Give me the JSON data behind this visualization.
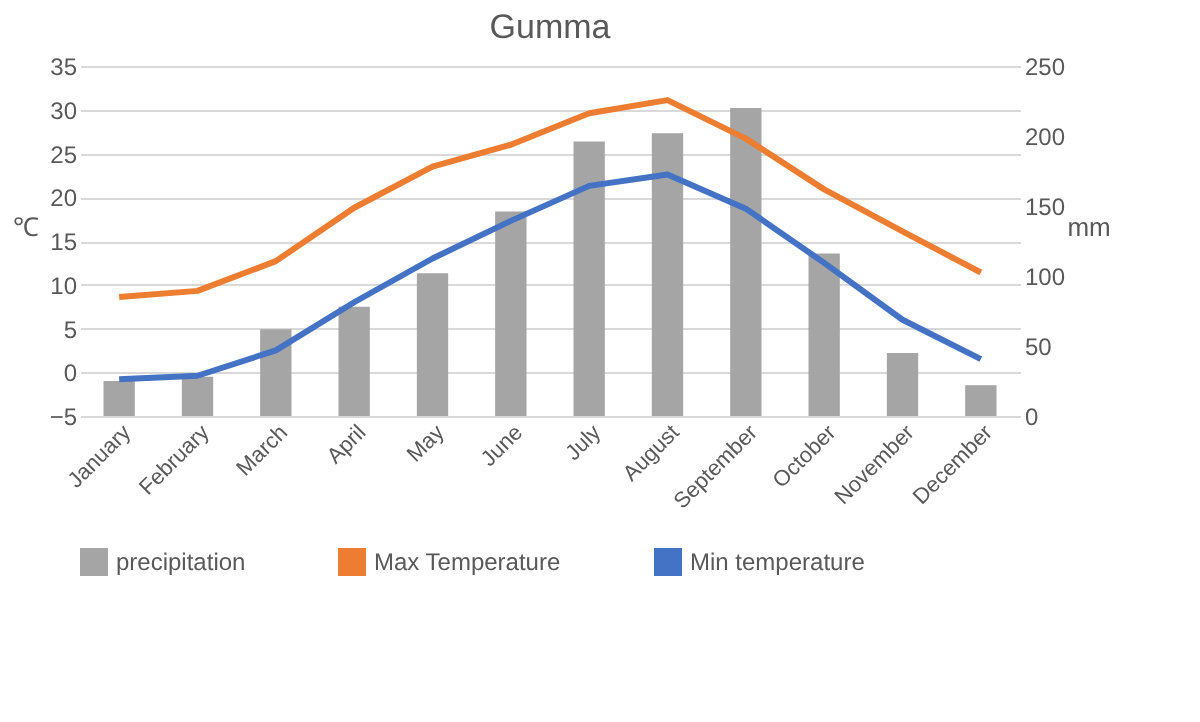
{
  "chart_data": {
    "type": "bar",
    "title": "Gumma",
    "ylabel": "℃",
    "y2label": "mm",
    "categories": [
      "January",
      "February",
      "March",
      "April",
      "May",
      "June",
      "July",
      "August",
      "September",
      "October",
      "November",
      "December"
    ],
    "series": [
      {
        "name": "precipitation",
        "axis": "y2",
        "color": "#a5a5a5",
        "values": [
          25,
          28,
          62,
          78,
          102,
          146,
          196,
          202,
          220,
          116,
          45,
          22
        ]
      },
      {
        "name": "Max Temperature",
        "type": "line",
        "color": "#ed7d31",
        "values": [
          8.6,
          9.3,
          12.7,
          18.8,
          23.5,
          26,
          29.6,
          31.1,
          26.7,
          20.9,
          16.1,
          11.4
        ]
      },
      {
        "name": "Min temperature",
        "type": "line",
        "color": "#4472c4",
        "values": [
          -0.8,
          -0.4,
          2.5,
          8,
          13,
          17.3,
          21.3,
          22.6,
          18.7,
          12.5,
          6,
          1.5
        ]
      }
    ],
    "ylim": [
      -5,
      35
    ],
    "yticks": [
      -5,
      0,
      5,
      10,
      15,
      20,
      25,
      30,
      35
    ],
    "y2lim": [
      0,
      250
    ],
    "y2ticks": [
      0,
      50,
      100,
      150,
      200,
      250
    ],
    "grid": "y",
    "legend": "bottom",
    "line_style": "solid",
    "marker": "none"
  }
}
